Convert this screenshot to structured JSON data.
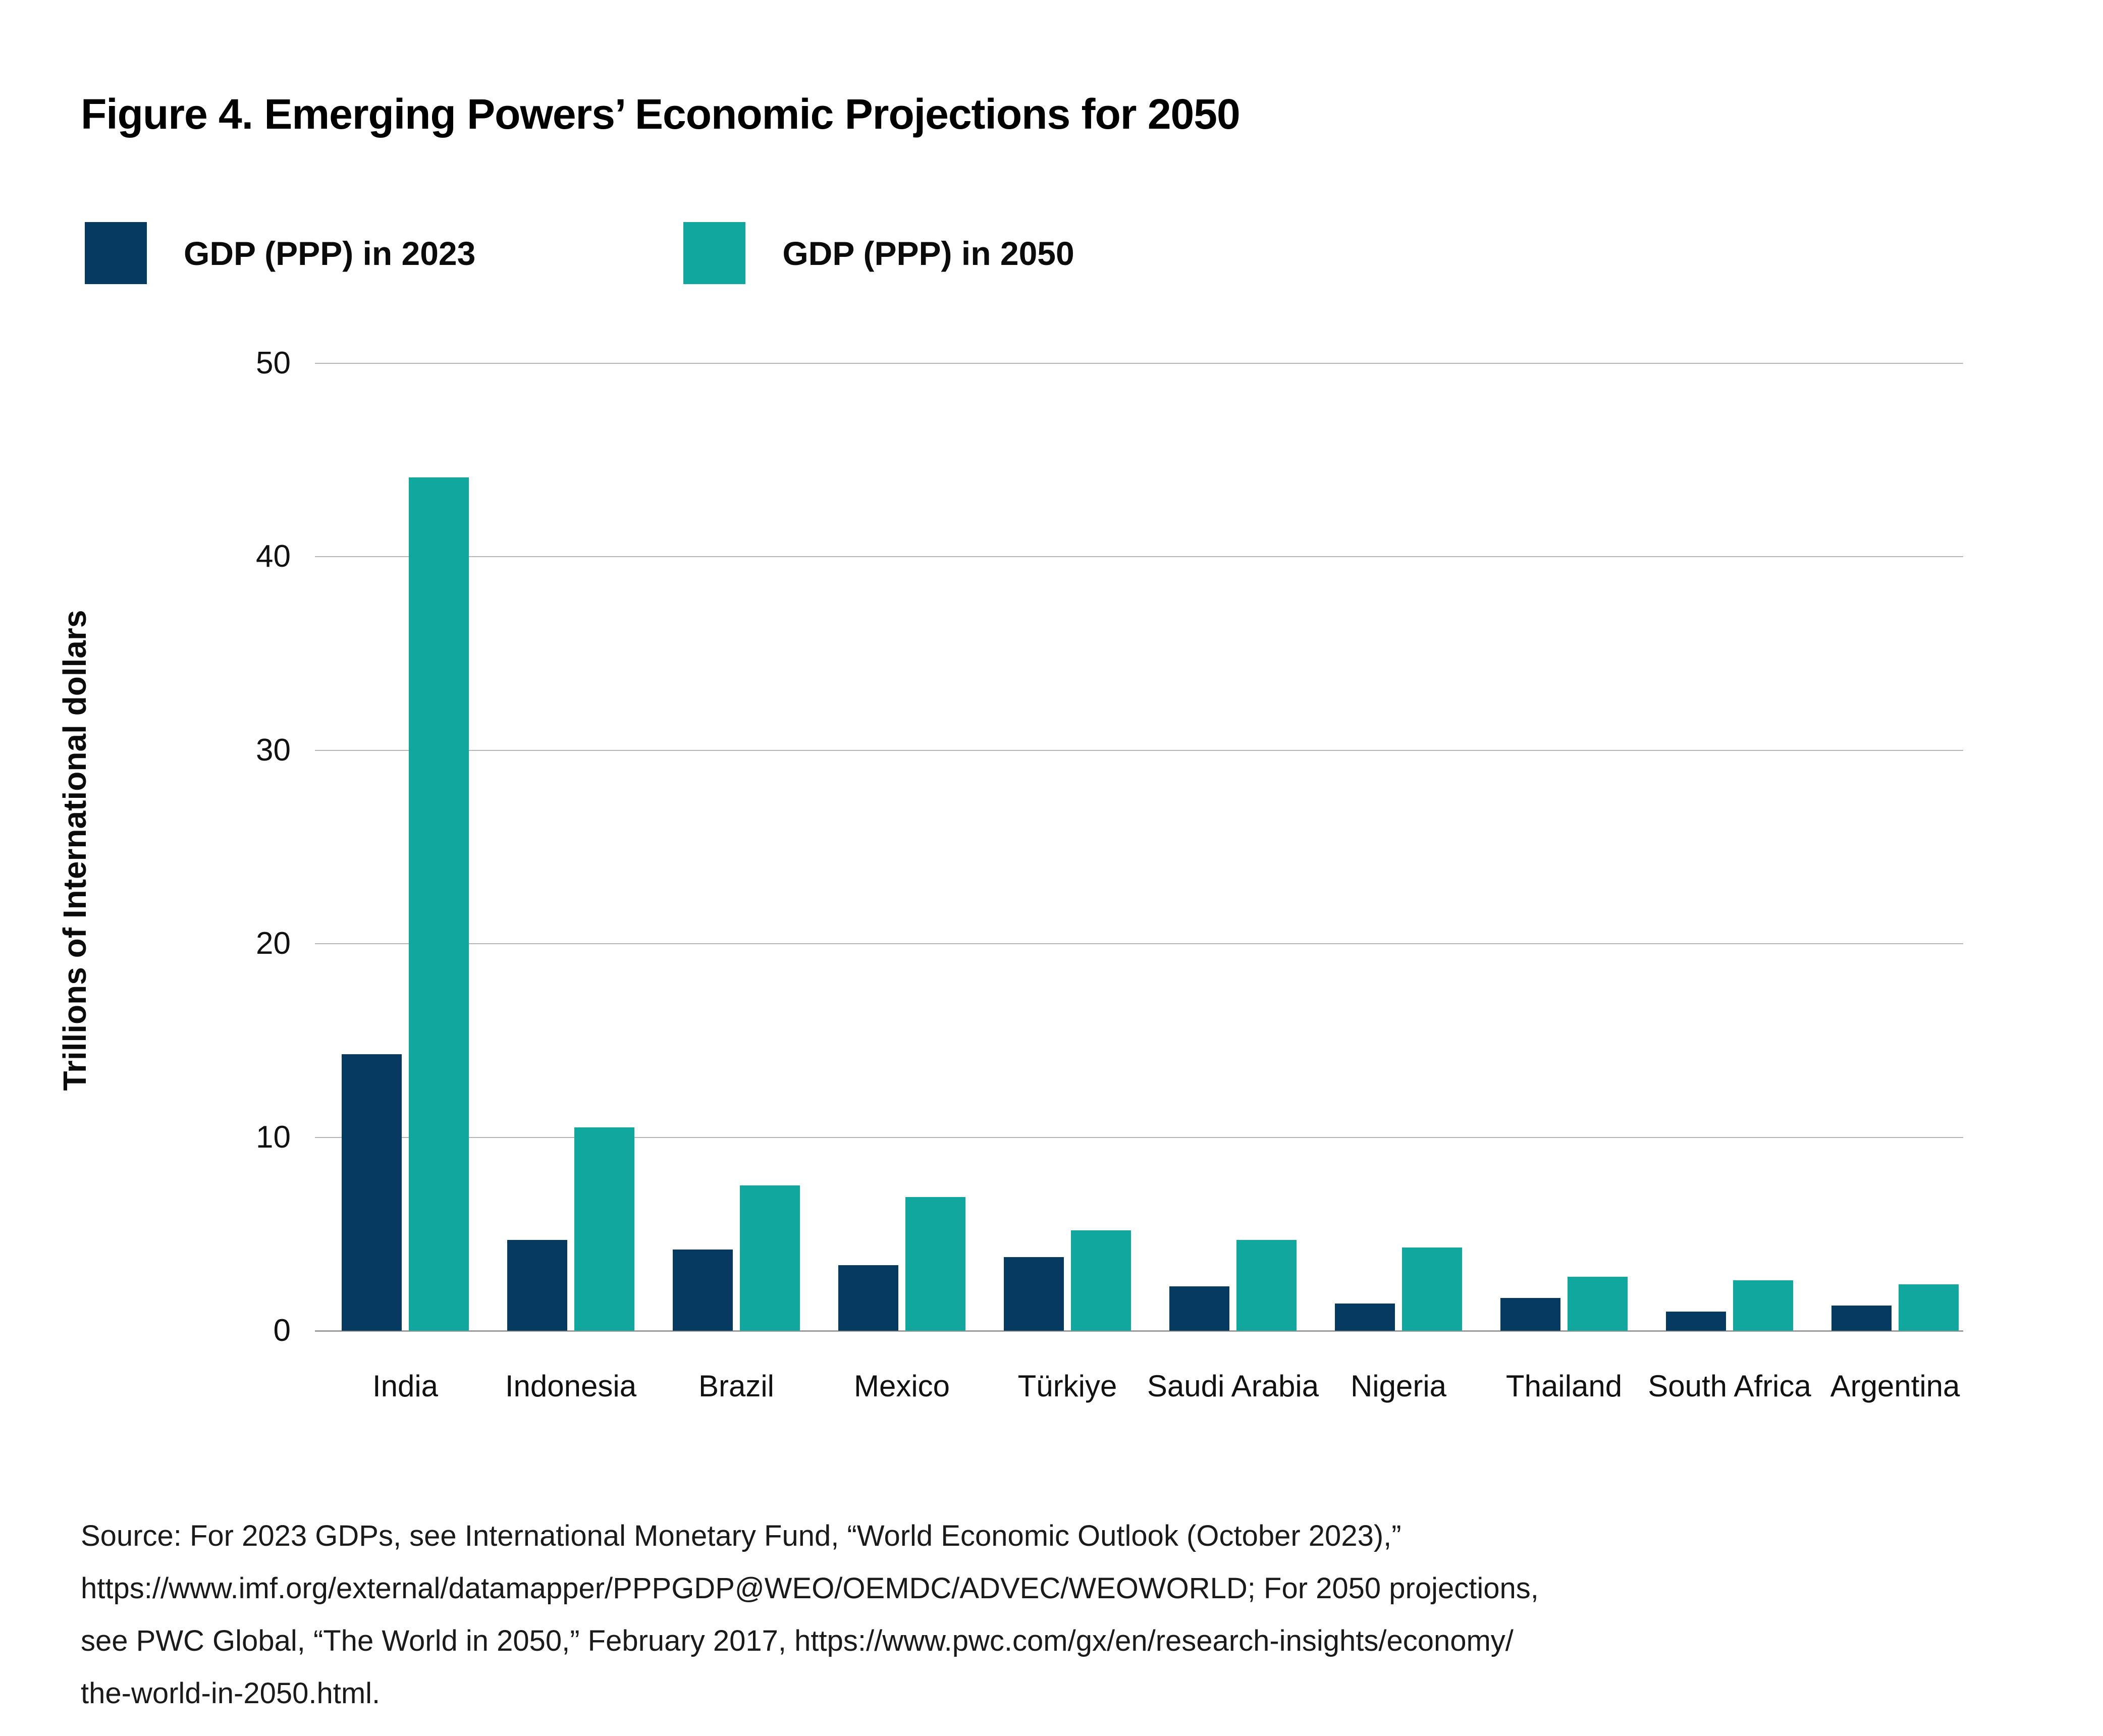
{
  "title": "Figure 4. Emerging Powers’ Economic Projections for 2050",
  "legend": [
    {
      "label": "GDP (PPP) in 2023",
      "color": "#063a60"
    },
    {
      "label": "GDP (PPP) in 2050",
      "color": "#12a79e"
    }
  ],
  "colors": {
    "series_2023": "#063a60",
    "series_2050": "#12a79e",
    "gridline": "#b5b5b5",
    "axis_line": "#9c9c9c"
  },
  "chart_data": {
    "type": "bar",
    "title": "Figure 4. Emerging Powers’ Economic Projections for 2050",
    "categories": [
      "India",
      "Indonesia",
      "Brazil",
      "Mexico",
      "Türkiye",
      "Saudi Arabia",
      "Nigeria",
      "Thailand",
      "South Africa",
      "Argentina"
    ],
    "series": [
      {
        "name": "GDP (PPP) in 2023",
        "color": "#063a60",
        "values": [
          14.3,
          4.7,
          4.2,
          3.4,
          3.8,
          2.3,
          1.4,
          1.7,
          1.0,
          1.3
        ]
      },
      {
        "name": "GDP (PPP) in 2050",
        "color": "#12a79e",
        "values": [
          44.1,
          10.5,
          7.5,
          6.9,
          5.2,
          4.7,
          4.3,
          2.8,
          2.6,
          2.4
        ]
      }
    ],
    "xlabel": "",
    "ylabel": "Trillions of International dollars",
    "yticks": [
      0,
      10,
      20,
      30,
      40,
      50
    ],
    "ylim": [
      0,
      50
    ],
    "grid": true,
    "legend_position": "top-left"
  },
  "source_lines": [
    "Source: For 2023 GDPs, see International Monetary Fund, “World Economic Outlook (October 2023),”",
    "https://www.imf.org/external/datamapper/PPPGDP@WEO/OEMDC/ADVEC/WEOWORLD; For 2050 projections,",
    "see PWC Global, “The World in 2050,” February 2017, https://www.pwc.com/gx/en/research-insights/economy/",
    "the-world-in-2050.html."
  ]
}
